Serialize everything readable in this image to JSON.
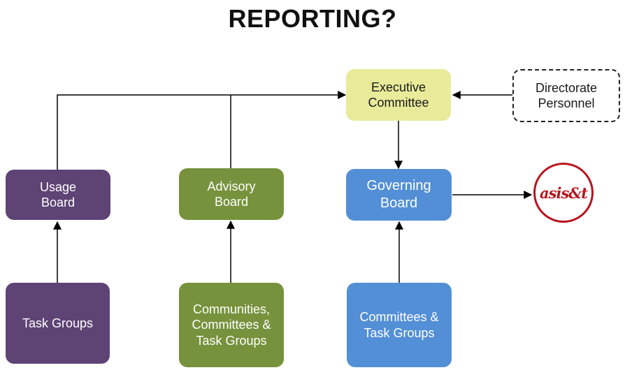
{
  "title": "REPORTING?",
  "nodes": {
    "executive": "Executive\nCommittee",
    "directorate": "Directorate\nPersonnel",
    "usage": "Usage\nBoard",
    "advisory": "Advisory\nBoard",
    "governing": "Governing\nBoard",
    "task_groups": "Task Groups",
    "communities": "Communities,\nCommittees &\nTask Groups",
    "committees": "Committees &\nTask Groups"
  },
  "logo_text": "asis&t",
  "colors": {
    "purple": "#5e4375",
    "green": "#76923c",
    "blue": "#538fd6",
    "yellow": "#e9eb9a",
    "logo_red": "#b8141d"
  }
}
